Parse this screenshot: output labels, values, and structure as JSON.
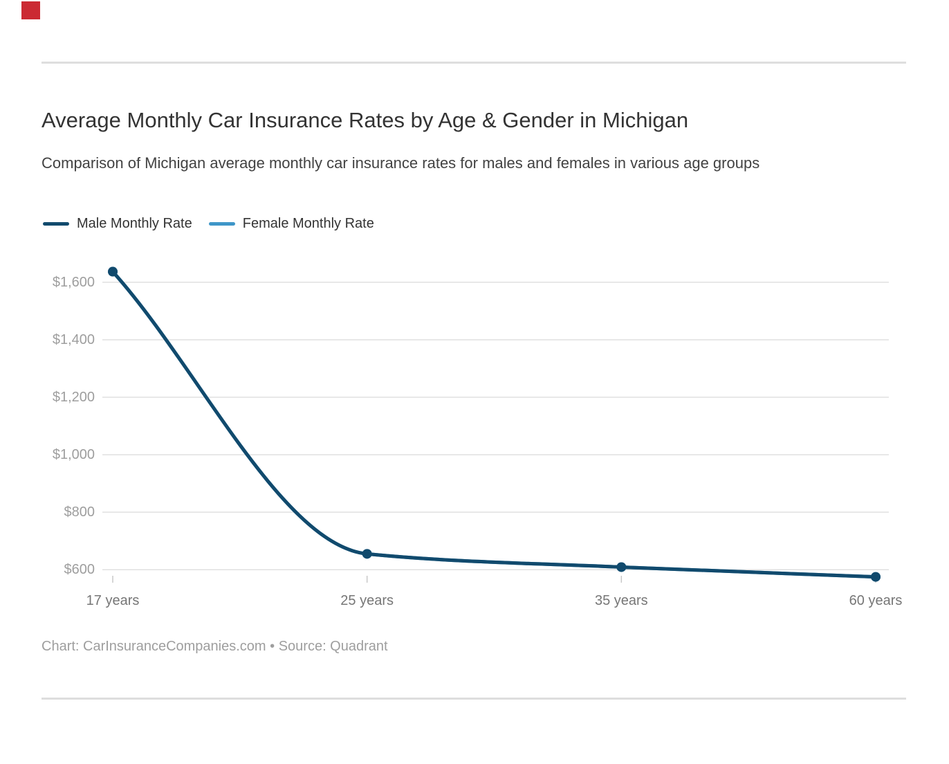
{
  "header": {
    "title": "Average Monthly Car Insurance Rates by Age & Gender in Michigan",
    "subtitle": "Comparison of Michigan average monthly car insurance rates for males and females in various age groups"
  },
  "legend": {
    "items": [
      {
        "label": "Male Monthly Rate",
        "color": "#114a6d"
      },
      {
        "label": "Female Monthly Rate",
        "color": "#3e96c8"
      }
    ]
  },
  "footer": {
    "text": "Chart: CarInsuranceCompanies.com • Source: Quadrant"
  },
  "colors": {
    "male_line": "#114a6d",
    "female_line": "#3e96c8",
    "gridline": "#e0e0e0",
    "axis_tick": "#c8c8c8",
    "divider_rule": "#dedede",
    "red_marker": "#cb2a33"
  },
  "chart_data": {
    "type": "line",
    "title": "Average Monthly Car Insurance Rates by Age & Gender in Michigan",
    "subtitle": "Comparison of Michigan average monthly car insurance rates for males and females in various age groups",
    "categories": [
      "17 years",
      "25 years",
      "35 years",
      "60 years"
    ],
    "series": [
      {
        "name": "Male Monthly Rate",
        "color": "#114a6d",
        "values": [
          1637,
          655,
          609,
          575
        ]
      },
      {
        "name": "Female Monthly Rate",
        "color": "#3e96c8",
        "values": [
          1637,
          655,
          609,
          575
        ]
      }
    ],
    "xlabel": "",
    "ylabel": "",
    "y_ticks": [
      {
        "value": 600,
        "label": "$600"
      },
      {
        "value": 800,
        "label": "$800"
      },
      {
        "value": 1000,
        "label": "$1,000"
      },
      {
        "value": 1200,
        "label": "$1,200"
      },
      {
        "value": 1400,
        "label": "$1,400"
      },
      {
        "value": 1600,
        "label": "$1,600"
      }
    ],
    "ylim": [
      550,
      1670
    ],
    "grid": "horizontal",
    "legend_position": "top-left",
    "attribution": "Chart: CarInsuranceCompanies.com • Source: Quadrant"
  }
}
